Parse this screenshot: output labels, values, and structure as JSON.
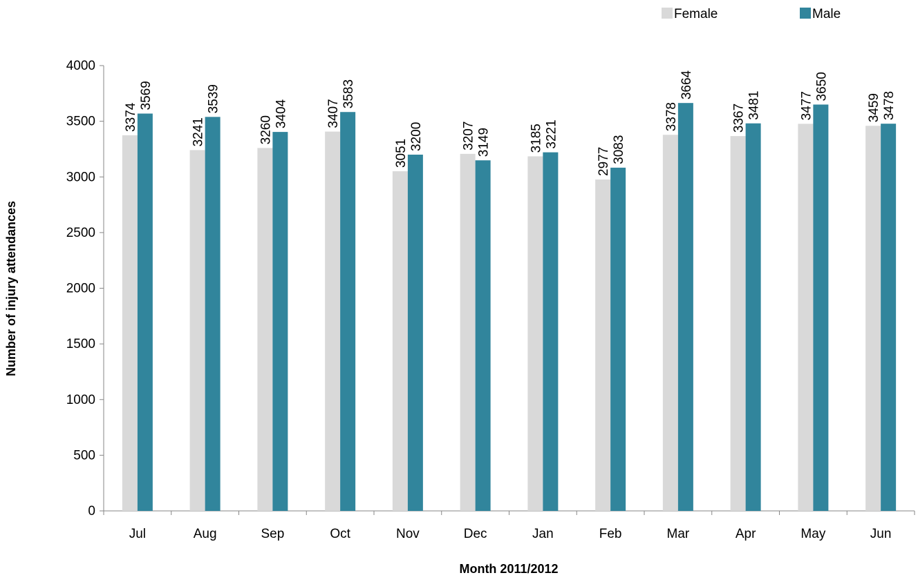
{
  "chart_data": {
    "type": "bar",
    "title": "",
    "xlabel": "Month 2011/2012",
    "ylabel": "Number of injury attendances",
    "categories": [
      "Jul",
      "Aug",
      "Sep",
      "Oct",
      "Nov",
      "Dec",
      "Jan",
      "Feb",
      "Mar",
      "Apr",
      "May",
      "Jun"
    ],
    "series": [
      {
        "name": "Female",
        "color": "#D9D9D9",
        "values": [
          3374,
          3241,
          3260,
          3407,
          3051,
          3207,
          3185,
          2977,
          3378,
          3367,
          3477,
          3459
        ]
      },
      {
        "name": "Male",
        "color": "#31859C",
        "values": [
          3569,
          3539,
          3404,
          3583,
          3200,
          3149,
          3221,
          3083,
          3664,
          3481,
          3650,
          3478
        ]
      }
    ],
    "ylim": [
      0,
      4000
    ],
    "yticks": [
      0,
      500,
      1000,
      1500,
      2000,
      2500,
      3000,
      3500,
      4000
    ],
    "grid": false,
    "legend_position": "top-right",
    "data_labels": true
  }
}
